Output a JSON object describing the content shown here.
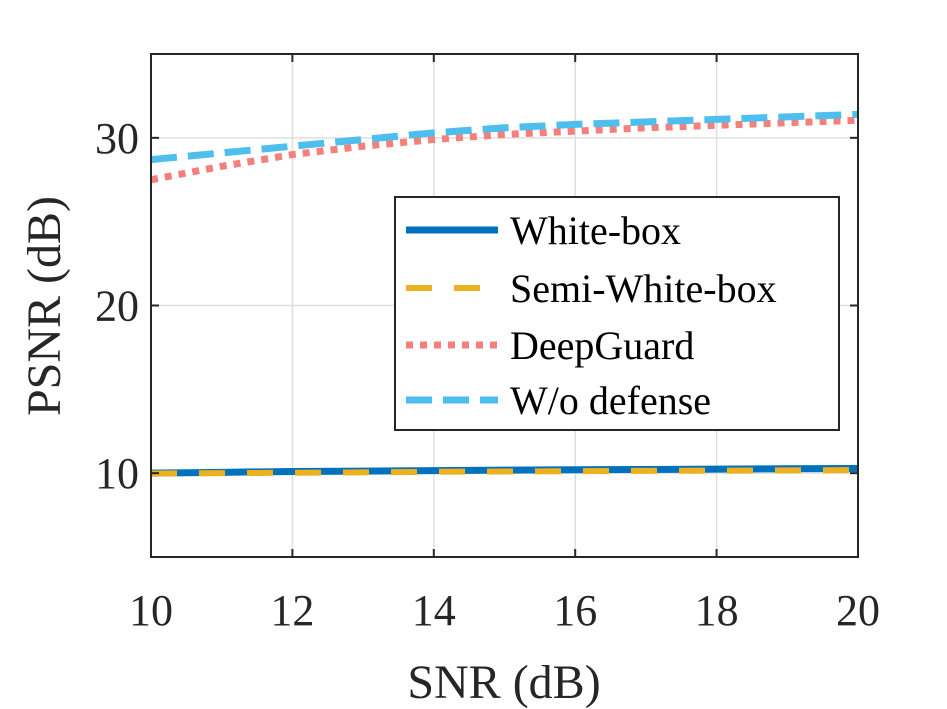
{
  "chart_data": {
    "type": "line",
    "title": "",
    "xlabel": "SNR (dB)",
    "ylabel": "PSNR (dB)",
    "xlim": [
      10,
      20
    ],
    "ylim": [
      5,
      35
    ],
    "xticks": [
      10,
      12,
      14,
      16,
      18,
      20
    ],
    "yticks": [
      10,
      20,
      30
    ],
    "xtick_labels": [
      "10",
      "12",
      "14",
      "16",
      "18",
      "20"
    ],
    "ytick_labels": [
      "10",
      "20",
      "30"
    ],
    "grid": true,
    "legend_position": "center-right",
    "x": [
      10,
      11,
      12,
      13,
      14,
      15,
      16,
      17,
      18,
      19,
      20
    ],
    "series": [
      {
        "name": "White-box",
        "color": "#0072BD",
        "style": "solid",
        "values": [
          10.0,
          10.05,
          10.1,
          10.12,
          10.15,
          10.18,
          10.2,
          10.22,
          10.24,
          10.26,
          10.28
        ]
      },
      {
        "name": "Semi-White-box",
        "color": "#EDB120",
        "style": "dashed",
        "values": [
          9.98,
          10.0,
          10.02,
          10.05,
          10.08,
          10.1,
          10.12,
          10.14,
          10.15,
          10.17,
          10.18
        ]
      },
      {
        "name": "DeepGuard",
        "color": "#F4807B",
        "style": "dotted",
        "values": [
          27.5,
          28.3,
          29.0,
          29.5,
          29.9,
          30.2,
          30.4,
          30.6,
          30.75,
          30.9,
          31.05
        ]
      },
      {
        "name": "W/o defense",
        "color": "#4DBEEE",
        "style": "dashed",
        "values": [
          28.7,
          29.1,
          29.5,
          29.9,
          30.3,
          30.6,
          30.8,
          30.95,
          31.1,
          31.25,
          31.4
        ]
      }
    ]
  }
}
